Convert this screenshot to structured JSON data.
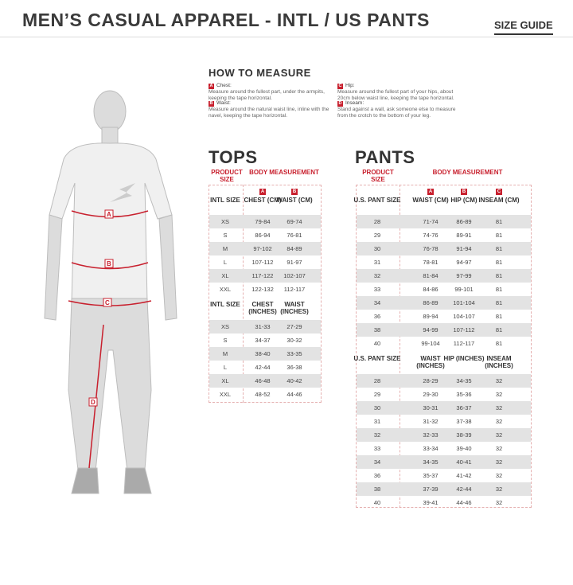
{
  "header": {
    "title": "MEN’S CASUAL APPAREL - INTL / US PANTS",
    "size_guide": "SIZE GUIDE"
  },
  "colors": {
    "accent": "#c8202e",
    "row_shade": "#e3e3e3"
  },
  "figure": {
    "markers": [
      "A",
      "B",
      "C",
      "D"
    ]
  },
  "how_to_measure": {
    "title": "HOW TO MEASURE",
    "items": [
      {
        "letter": "A",
        "label": "Chest:",
        "text": "Measure around the fullest part, under the armpits, keeping the tape horizontal."
      },
      {
        "letter": "B",
        "label": "Waist:",
        "text": "Measure around the natural waist line, inline with the navel, keeping the tape horizontal."
      },
      {
        "letter": "C",
        "label": "Hip:",
        "text": "Measure around the fullest part of your hips, about 20cm below waist line, keeping the tape horizontal."
      },
      {
        "letter": "D",
        "label": "Inseam:",
        "text": "Stand against a wall, ask someone else to measure from the crotch to the bottom of your leg."
      }
    ]
  },
  "tops": {
    "title": "TOPS",
    "product_size": "PRODUCT SIZE",
    "body_measurement": "BODY MEASUREMENT",
    "cm_headers": [
      "INTL SIZE",
      "CHEST (CM)",
      "WAIST (CM)"
    ],
    "badges": [
      "A",
      "B"
    ],
    "cm_rows": [
      [
        "XS",
        "79-84",
        "69-74"
      ],
      [
        "S",
        "86-94",
        "76-81"
      ],
      [
        "M",
        "97-102",
        "84-89"
      ],
      [
        "L",
        "107-112",
        "91-97"
      ],
      [
        "XL",
        "117-122",
        "102-107"
      ],
      [
        "XXL",
        "122-132",
        "112-117"
      ]
    ],
    "in_headers": [
      "INTL SIZE",
      "CHEST (INCHES)",
      "WAIST (INCHES)"
    ],
    "in_rows": [
      [
        "XS",
        "31-33",
        "27-29"
      ],
      [
        "S",
        "34-37",
        "30-32"
      ],
      [
        "M",
        "38-40",
        "33-35"
      ],
      [
        "L",
        "42-44",
        "36-38"
      ],
      [
        "XL",
        "46-48",
        "40-42"
      ],
      [
        "XXL",
        "48-52",
        "44-46"
      ]
    ]
  },
  "pants": {
    "title": "PANTS",
    "product_size": "PRODUCT SIZE",
    "body_measurement": "BODY MEASUREMENT",
    "cm_headers": [
      "U.S. PANT SIZE",
      "WAIST (CM)",
      "HIP (CM)",
      "INSEAM (CM)"
    ],
    "badges": [
      "A",
      "B",
      "C"
    ],
    "cm_rows": [
      [
        "28",
        "71-74",
        "86-89",
        "81"
      ],
      [
        "29",
        "74-76",
        "89-91",
        "81"
      ],
      [
        "30",
        "76-78",
        "91-94",
        "81"
      ],
      [
        "31",
        "78-81",
        "94-97",
        "81"
      ],
      [
        "32",
        "81-84",
        "97-99",
        "81"
      ],
      [
        "33",
        "84-86",
        "99-101",
        "81"
      ],
      [
        "34",
        "86-89",
        "101-104",
        "81"
      ],
      [
        "36",
        "89-94",
        "104-107",
        "81"
      ],
      [
        "38",
        "94-99",
        "107-112",
        "81"
      ],
      [
        "40",
        "99-104",
        "112-117",
        "81"
      ]
    ],
    "in_headers": [
      "U.S. PANT SIZE",
      "WAIST (INCHES)",
      "HIP (INCHES)",
      "INSEAM (INCHES)"
    ],
    "in_rows": [
      [
        "28",
        "28-29",
        "34-35",
        "32"
      ],
      [
        "29",
        "29-30",
        "35-36",
        "32"
      ],
      [
        "30",
        "30-31",
        "36-37",
        "32"
      ],
      [
        "31",
        "31-32",
        "37-38",
        "32"
      ],
      [
        "32",
        "32-33",
        "38-39",
        "32"
      ],
      [
        "33",
        "33-34",
        "39-40",
        "32"
      ],
      [
        "34",
        "34-35",
        "40-41",
        "32"
      ],
      [
        "36",
        "35-37",
        "41-42",
        "32"
      ],
      [
        "38",
        "37-39",
        "42-44",
        "32"
      ],
      [
        "40",
        "39-41",
        "44-46",
        "32"
      ]
    ]
  }
}
